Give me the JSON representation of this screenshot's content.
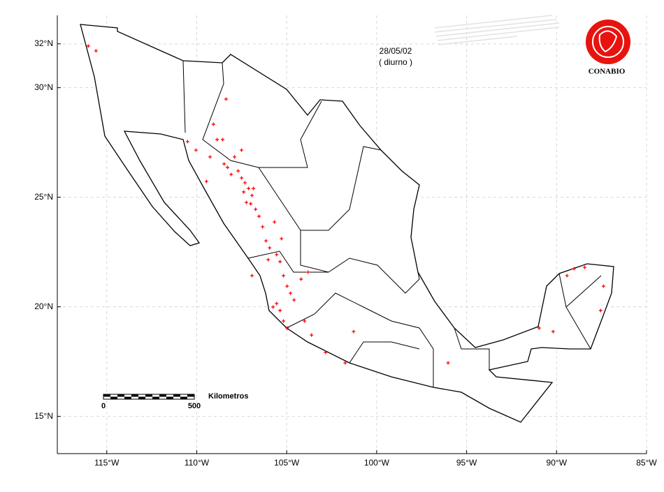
{
  "chart_data": {
    "type": "scatter",
    "title": "28/05/02",
    "subtitle": "( diurno )",
    "logo_text": "CONABIO",
    "scale_bar": {
      "start": 0,
      "end": 500,
      "label": "Kilometros"
    },
    "color": "#ff0000",
    "grid": true,
    "xlim": [
      -117.75,
      -85
    ],
    "ylim": [
      13.3,
      33.3
    ],
    "xticks": [
      {
        "value": -115,
        "label": "115°W"
      },
      {
        "value": -110,
        "label": "110°W"
      },
      {
        "value": -105,
        "label": "105°W"
      },
      {
        "value": -100,
        "label": "100°W"
      },
      {
        "value": -95,
        "label": "95°W"
      },
      {
        "value": -90,
        "label": "90°W"
      },
      {
        "value": -85,
        "label": "85°W"
      }
    ],
    "yticks": [
      {
        "value": 15,
        "label": "15°N"
      },
      {
        "value": 20,
        "label": "20°N"
      },
      {
        "value": 25,
        "label": "25°N"
      },
      {
        "value": 30,
        "label": "30°N"
      },
      {
        "value": 32,
        "label": "32°N"
      }
    ],
    "x": [
      -115.6,
      -116.03,
      -108.37,
      -109.07,
      -108.56,
      -110.51,
      -110.04,
      -109.26,
      -109.46,
      -108.29,
      -108.09,
      -107.7,
      -107.51,
      -107.32,
      -107.12,
      -106.93,
      -107.24,
      -107.39,
      -106.73,
      -106.54,
      -106.34,
      -106.15,
      -105.95,
      -105.56,
      -105.37,
      -105.18,
      -104.98,
      -104.79,
      -104.59,
      -105.37,
      -105.18,
      -104.98,
      -105.56,
      -105.76,
      -104.2,
      -103.81,
      -104.01,
      -103.62,
      -102.84,
      -101.75,
      -106.93,
      -106.03,
      -105.68,
      -105.29,
      -107.9,
      -107.51,
      -108.87,
      -108.48,
      -106.85,
      -107.0,
      -96.03,
      -90.19,
      -90.97,
      -89.42,
      -89.03,
      -88.44,
      -87.55,
      -87.39,
      -101.28
    ],
    "values": [
      31.68,
      31.9,
      29.48,
      28.33,
      27.63,
      27.54,
      27.15,
      26.84,
      25.72,
      26.36,
      26.04,
      26.2,
      25.88,
      25.66,
      25.4,
      25.08,
      24.76,
      25.24,
      24.45,
      24.13,
      23.65,
      23.01,
      22.69,
      22.38,
      22.06,
      21.42,
      20.94,
      20.62,
      20.31,
      19.83,
      19.35,
      19.03,
      20.15,
      19.99,
      21.26,
      21.58,
      19.35,
      18.71,
      17.92,
      17.44,
      21.42,
      22.15,
      23.87,
      23.11,
      26.84,
      27.15,
      27.63,
      26.52,
      25.4,
      24.7,
      17.44,
      18.87,
      19.03,
      21.42,
      21.74,
      21.8,
      19.83,
      20.94,
      18.87
    ]
  }
}
